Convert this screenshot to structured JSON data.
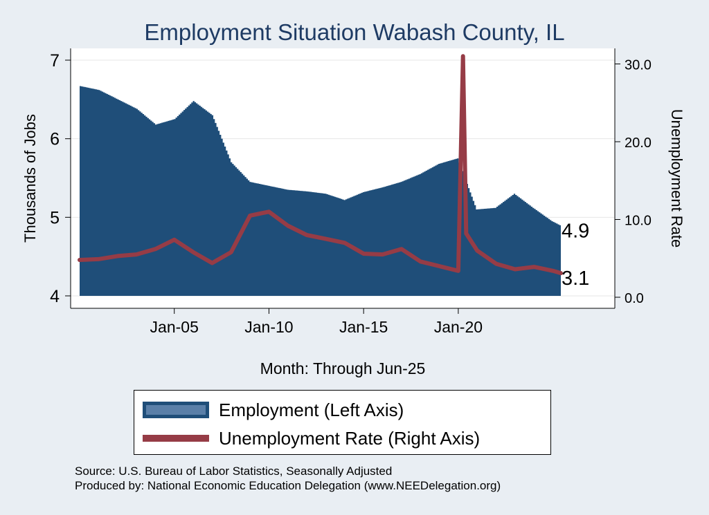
{
  "chart_data": {
    "type": "bar+line",
    "title": "Employment Situation Wabash  County, IL",
    "xlabel": "Month: Through Jun-25",
    "ylabel_left": "Thousands of Jobs",
    "ylabel_right": "Unemployment Rate",
    "x_range": [
      "Jan-00",
      "Jun-25"
    ],
    "x_ticks": [
      "Jan-05",
      "Jan-10",
      "Jan-15",
      "Jan-20"
    ],
    "left_axis": {
      "ylim": [
        4,
        7
      ],
      "ticks": [
        "4",
        "5",
        "6",
        "7"
      ]
    },
    "right_axis": {
      "ylim": [
        0,
        32
      ],
      "ticks": [
        "0.0",
        "10.0",
        "20.0",
        "30.0"
      ]
    },
    "grid": true,
    "series": [
      {
        "name": "Employment (Left Axis)",
        "type": "bar",
        "axis": "left",
        "color": "#1f4e79",
        "x": [
          "Jan-00",
          "Jan-01",
          "Jan-02",
          "Jan-03",
          "Jan-04",
          "Jan-05",
          "Jan-06",
          "Jan-07",
          "Jan-08",
          "Jan-09",
          "Jan-10",
          "Jan-11",
          "Jan-12",
          "Jan-13",
          "Jan-14",
          "Jan-15",
          "Jan-16",
          "Jan-17",
          "Jan-18",
          "Jan-19",
          "Jan-20",
          "Jan-21",
          "Jan-22",
          "Jan-23",
          "Jan-24",
          "Jan-25",
          "Jun-25"
        ],
        "values": [
          6.67,
          6.62,
          6.5,
          6.38,
          6.18,
          6.25,
          6.48,
          6.3,
          5.7,
          5.45,
          5.4,
          5.35,
          5.33,
          5.3,
          5.22,
          5.32,
          5.38,
          5.45,
          5.55,
          5.68,
          5.75,
          5.1,
          5.12,
          5.3,
          5.12,
          4.95,
          4.9
        ]
      },
      {
        "name": "Unemployment Rate (Right Axis)",
        "type": "line",
        "axis": "right",
        "color": "#963c46",
        "x": [
          "Jan-00",
          "Jan-01",
          "Jan-02",
          "Jan-03",
          "Jan-04",
          "Jan-05",
          "Jan-06",
          "Jan-07",
          "Jan-08",
          "Jan-09",
          "Jan-10",
          "Jan-11",
          "Jan-12",
          "Jan-13",
          "Jan-14",
          "Jan-15",
          "Jan-16",
          "Jan-17",
          "Jan-18",
          "Jan-19",
          "Jan-20",
          "Apr-20",
          "Jun-20",
          "Jan-21",
          "Jan-22",
          "Jan-23",
          "Jan-24",
          "Jan-25",
          "Jun-25"
        ],
        "values": [
          4.8,
          4.9,
          5.3,
          5.5,
          6.2,
          7.4,
          5.8,
          4.4,
          5.8,
          10.5,
          11.0,
          9.2,
          8.0,
          7.5,
          7.0,
          5.6,
          5.5,
          6.2,
          4.6,
          4.0,
          3.4,
          31.0,
          8.2,
          6.0,
          4.3,
          3.6,
          3.9,
          3.4,
          3.1
        ]
      }
    ],
    "end_labels": [
      "4.9",
      "3.1"
    ]
  },
  "legend": {
    "employment": "Employment (Left Axis)",
    "unemployment": "Unemployment Rate (Right Axis)"
  },
  "source_line": "Source: U.S. Bureau of Labor Statistics, Seasonally Adjusted",
  "produced_line": "Produced by: National Economic Education Delegation (www.NEEDelegation.org)",
  "colors": {
    "background": "#e9eef3",
    "plot": "#ffffff",
    "bars": "#1f4e79",
    "line": "#963c46",
    "title": "#1e3b64"
  }
}
